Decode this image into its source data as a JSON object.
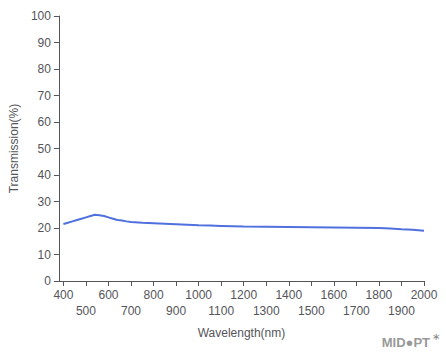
{
  "chart_data": {
    "type": "line",
    "xlabel": "Wavelength(nm)",
    "ylabel": "Transmission(%)",
    "x": [
      400,
      420,
      440,
      460,
      480,
      500,
      520,
      540,
      560,
      580,
      600,
      620,
      640,
      660,
      680,
      700,
      750,
      800,
      850,
      900,
      950,
      1000,
      1050,
      1100,
      1150,
      1200,
      1300,
      1400,
      1500,
      1600,
      1700,
      1800,
      1850,
      1900,
      1950,
      2000
    ],
    "values": [
      21.5,
      22.0,
      22.5,
      23.0,
      23.5,
      24.0,
      24.5,
      25.0,
      24.8,
      24.5,
      24.0,
      23.5,
      23.0,
      22.8,
      22.5,
      22.3,
      22.0,
      21.8,
      21.6,
      21.4,
      21.2,
      21.0,
      20.9,
      20.8,
      20.7,
      20.6,
      20.5,
      20.4,
      20.3,
      20.2,
      20.1,
      20.0,
      19.8,
      19.5,
      19.3,
      19.0
    ],
    "xlim": [
      380,
      2000
    ],
    "xticks": [
      400,
      500,
      600,
      700,
      800,
      900,
      1000,
      1100,
      1200,
      1300,
      1400,
      1500,
      1600,
      1700,
      1800,
      1900,
      2000
    ],
    "ylim": [
      0,
      100
    ],
    "yticks": [
      0,
      10,
      20,
      30,
      40,
      50,
      60,
      70,
      80,
      90,
      100
    ],
    "grid": false,
    "annotations": [
      "MID●PT",
      "∗"
    ]
  }
}
